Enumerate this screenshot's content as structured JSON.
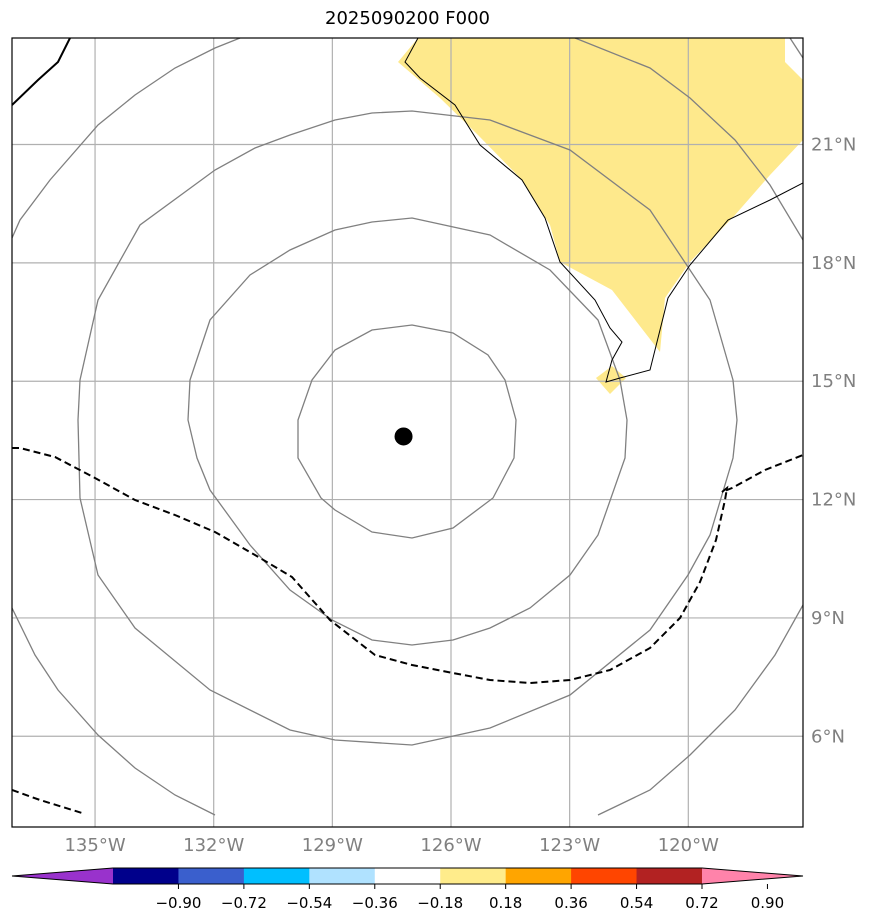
{
  "title": "2025090200 F000",
  "grid": {
    "longitudes": [
      {
        "value": -135,
        "label": "135°W"
      },
      {
        "value": -132,
        "label": "132°W"
      },
      {
        "value": -129,
        "label": "129°W"
      },
      {
        "value": -126,
        "label": "126°W"
      },
      {
        "value": -123,
        "label": "123°W"
      },
      {
        "value": -120,
        "label": "120°W"
      }
    ],
    "latitudes": [
      {
        "value": 6,
        "label": "6°N"
      },
      {
        "value": 9,
        "label": "9°N"
      },
      {
        "value": 12,
        "label": "12°N"
      },
      {
        "value": 15,
        "label": "15°N"
      },
      {
        "value": 18,
        "label": "18°N"
      },
      {
        "value": 21,
        "label": "21°N"
      }
    ],
    "extent_lon": [
      -137.1,
      -117.1
    ],
    "extent_lat": [
      3.7,
      23.7
    ]
  },
  "storm_center": {
    "lon": -127.2,
    "lat": 13.6
  },
  "colorbar": {
    "colors": [
      "#9932cc",
      "#00008b",
      "#3a5fcd",
      "#00bfff",
      "#b0e2ff",
      "#ffffff",
      "#ffec8b",
      "#ffa500",
      "#ff4500",
      "#b22222",
      "#ff83aa"
    ],
    "ticks": [
      "−0.90",
      "−0.72",
      "−0.54",
      "−0.36",
      "−0.18",
      "0.18",
      "0.36",
      "0.54",
      "0.72",
      "0.90"
    ]
  },
  "colors": {
    "land_fill": "#fee98c",
    "grid": "#b0b0b0",
    "contour": "#808080",
    "coast": "#000000"
  }
}
